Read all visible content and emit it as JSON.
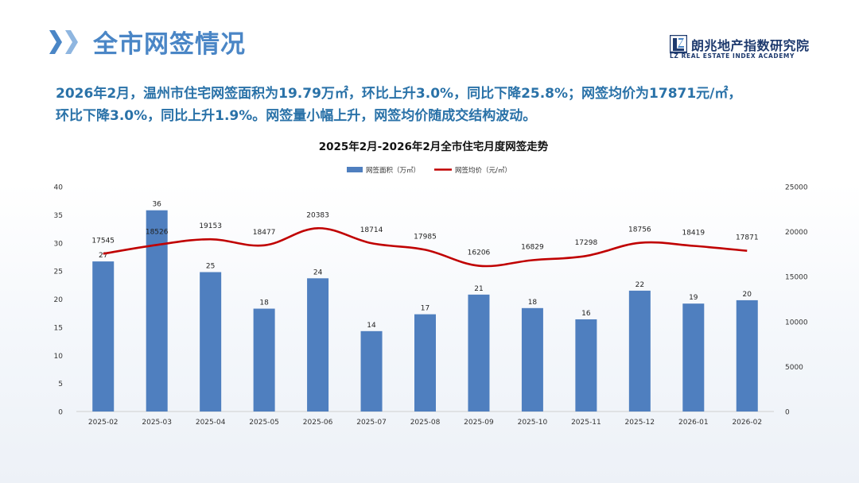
{
  "header": {
    "title": "全市网签情况",
    "logo_cn": "朗兆地产指数研究院",
    "logo_en": "LZ REAL ESTATE INDEX ACADEMY"
  },
  "summary": {
    "line1": "2026年2月，温州市住宅网签面积为19.79万㎡，环比上升3.0%，同比下降25.8%；网签均价为17871元/㎡，",
    "line2": "环比下降3.0%，同比上升1.9%。网签量小幅上升，网签均价随成交结构波动。"
  },
  "colors": {
    "title": "#4a86c6",
    "summary": "#2a72a8",
    "bar": "#4f7fbf",
    "line": "#c00000"
  },
  "chart_data": {
    "type": "bar",
    "title": "2025年2月-2026年2月全市住宅月度网签走势",
    "categories": [
      "2025-02",
      "2025-03",
      "2025-04",
      "2025-05",
      "2025-06",
      "2025-07",
      "2025-08",
      "2025-09",
      "2025-10",
      "2025-11",
      "2025-12",
      "2026-01",
      "2026-02"
    ],
    "series": [
      {
        "name": "网签面积（万㎡）",
        "type": "bar",
        "axis": "left",
        "values": [
          26.7,
          35.8,
          24.8,
          18.3,
          23.7,
          14.3,
          17.3,
          20.8,
          18.4,
          16.4,
          21.5,
          19.2,
          19.8
        ],
        "labels": [
          "27",
          "36",
          "25",
          "18",
          "24",
          "14",
          "17",
          "21",
          "18",
          "16",
          "22",
          "19",
          "20"
        ]
      },
      {
        "name": "网签均价（元/㎡）",
        "type": "line",
        "axis": "right",
        "values": [
          17545,
          18526,
          19153,
          18477,
          20383,
          18714,
          17985,
          16206,
          16829,
          17298,
          18756,
          18419,
          17871
        ],
        "labels": [
          "17545",
          "18526",
          "19153",
          "18477",
          "20383",
          "18714",
          "17985",
          "16206",
          "16829",
          "17298",
          "18756",
          "18419",
          "17871"
        ]
      }
    ],
    "ylim_left": [
      0,
      40
    ],
    "yticks_left": [
      0,
      5,
      10,
      15,
      20,
      25,
      30,
      35,
      40
    ],
    "ylim_right": [
      0,
      25000
    ],
    "yticks_right": [
      0,
      5000,
      10000,
      15000,
      20000,
      25000
    ],
    "legend_position": "top-center",
    "grid": false
  }
}
